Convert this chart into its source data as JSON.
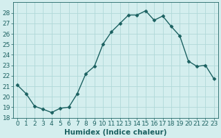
{
  "x": [
    0,
    1,
    2,
    3,
    4,
    5,
    6,
    7,
    8,
    9,
    10,
    11,
    12,
    13,
    14,
    15,
    16,
    17,
    18,
    19,
    20,
    21,
    22,
    23
  ],
  "y": [
    21.1,
    20.3,
    19.1,
    18.8,
    18.5,
    18.9,
    19.0,
    20.3,
    22.2,
    22.9,
    25.0,
    26.2,
    27.0,
    27.8,
    27.8,
    28.2,
    27.3,
    27.7,
    26.7,
    25.8,
    23.4,
    22.9,
    23.0,
    21.7
  ],
  "line_color": "#1a6060",
  "marker": "D",
  "marker_size": 2.5,
  "bg_color": "#d4eeee",
  "grid_color": "#b0d8d8",
  "xlabel": "Humidex (Indice chaleur)",
  "ylim": [
    18,
    29
  ],
  "xlim": [
    -0.5,
    23.5
  ],
  "yticks": [
    18,
    19,
    20,
    21,
    22,
    23,
    24,
    25,
    26,
    27,
    28
  ],
  "label_fontsize": 7.5,
  "tick_fontsize": 6.5
}
